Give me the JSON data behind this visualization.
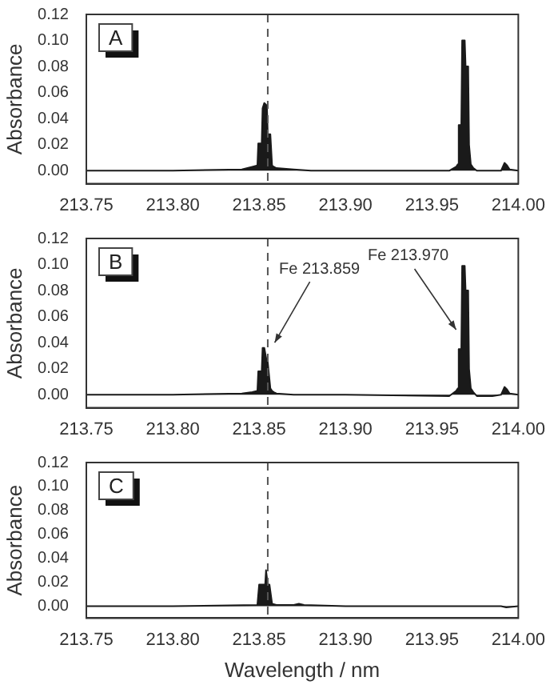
{
  "chart_data": [
    {
      "type": "area",
      "ylabel": "Absorbance",
      "annotations": [
        "A"
      ],
      "x": [
        213.75,
        213.8,
        213.84,
        213.846,
        213.849,
        213.8495,
        213.8515,
        213.852,
        213.853,
        213.8545,
        213.855,
        213.8565,
        213.8575,
        213.8585,
        213.86,
        213.87,
        213.88,
        213.9,
        213.96,
        213.964,
        213.965,
        213.9655,
        213.967,
        213.9675,
        213.969,
        213.9695,
        213.971,
        213.9715,
        213.9725,
        213.974,
        213.976,
        213.985,
        213.99,
        213.992,
        213.9935,
        213.995,
        214.0
      ],
      "values": [
        0,
        0,
        0.001,
        0.003,
        0.004,
        0.021,
        0.021,
        0.048,
        0.052,
        0.05,
        0.028,
        0.028,
        0.004,
        0.003,
        0.002,
        0.001,
        0,
        0,
        0,
        0.003,
        0.005,
        0.035,
        0.035,
        0.1,
        0.1,
        0.08,
        0.08,
        0.02,
        0.005,
        0.002,
        0,
        0,
        0,
        0.006,
        0.004,
        0.001,
        0
      ],
      "color": "#1a1a1a",
      "xlim": [
        213.75,
        214.0
      ],
      "xticks": [
        {
          "value": 213.75,
          "label": "213.75"
        },
        {
          "value": 213.8,
          "label": "213.80"
        },
        {
          "value": 213.85,
          "label": "213.85"
        },
        {
          "value": 213.9,
          "label": "213.90"
        },
        {
          "value": 213.95,
          "label": "213.95"
        },
        {
          "value": 214.0,
          "label": "214.00"
        }
      ],
      "ylim": [
        -0.01,
        0.12
      ],
      "yticks": [
        {
          "value": 0,
          "label": "0.00"
        },
        {
          "value": 0.02,
          "label": "0.02"
        },
        {
          "value": 0.04,
          "label": "0.04"
        },
        {
          "value": 0.06,
          "label": "0.06"
        },
        {
          "value": 0.08,
          "label": "0.08"
        },
        {
          "value": 0.1,
          "label": "0.10"
        },
        {
          "value": 0.12,
          "label": "0.12"
        }
      ],
      "ref_lines": [
        {
          "axis": "x",
          "value": 213.855,
          "line_style": "dashed",
          "color": "#555555"
        }
      ]
    },
    {
      "type": "area",
      "ylabel": "Absorbance",
      "annotations": [
        "B",
        {
          "text": "Fe 213.859",
          "x": 213.859,
          "y": 0.04
        },
        {
          "text": "Fe 213.970",
          "x": 213.964,
          "y": 0.05
        }
      ],
      "x": [
        213.75,
        213.8,
        213.84,
        213.846,
        213.849,
        213.8495,
        213.8515,
        213.852,
        213.853,
        213.8545,
        213.855,
        213.8565,
        213.8575,
        213.8585,
        213.86,
        213.87,
        213.88,
        213.9,
        213.96,
        213.964,
        213.965,
        213.9655,
        213.967,
        213.9675,
        213.969,
        213.9695,
        213.971,
        213.9715,
        213.9725,
        213.974,
        213.976,
        213.985,
        213.99,
        213.992,
        213.9935,
        213.995,
        214.0
      ],
      "values": [
        0,
        0,
        0.001,
        0.002,
        0.003,
        0.018,
        0.018,
        0.036,
        0.036,
        0.025,
        0.025,
        0.005,
        0.003,
        0.002,
        0.001,
        0,
        0,
        0,
        -0.001,
        0.003,
        0.005,
        0.035,
        0.035,
        0.099,
        0.099,
        0.08,
        0.08,
        0.02,
        0.005,
        0.002,
        -0.001,
        -0.001,
        0,
        0.006,
        0.004,
        0.001,
        0
      ],
      "color": "#1a1a1a",
      "xlim": [
        213.75,
        214.0
      ],
      "xticks": [
        {
          "value": 213.75,
          "label": "213.75"
        },
        {
          "value": 213.8,
          "label": "213.80"
        },
        {
          "value": 213.85,
          "label": "213.85"
        },
        {
          "value": 213.9,
          "label": "213.90"
        },
        {
          "value": 213.95,
          "label": "213.95"
        },
        {
          "value": 214.0,
          "label": "214.00"
        }
      ],
      "ylim": [
        -0.01,
        0.12
      ],
      "yticks": [
        {
          "value": 0,
          "label": "0.00"
        },
        {
          "value": 0.02,
          "label": "0.02"
        },
        {
          "value": 0.04,
          "label": "0.04"
        },
        {
          "value": 0.06,
          "label": "0.06"
        },
        {
          "value": 0.08,
          "label": "0.08"
        },
        {
          "value": 0.1,
          "label": "0.10"
        },
        {
          "value": 0.12,
          "label": "0.12"
        }
      ],
      "ref_lines": [
        {
          "axis": "x",
          "value": 213.855,
          "line_style": "dashed",
          "color": "#555555"
        }
      ]
    },
    {
      "type": "area",
      "ylabel": "Absorbance",
      "xlabel": "Wavelength / nm",
      "annotations": [
        "C"
      ],
      "x": [
        213.75,
        213.8,
        213.849,
        213.85,
        213.8535,
        213.854,
        213.855,
        213.856,
        213.8575,
        213.86,
        213.87,
        213.873,
        213.876,
        213.9,
        213.95,
        213.99,
        213.993,
        214.0
      ],
      "values": [
        0,
        0,
        0.001,
        0.018,
        0.018,
        0.03,
        0.018,
        0.018,
        0.002,
        0.001,
        0.001,
        0.002,
        0.001,
        0,
        0,
        0,
        -0.001,
        0
      ],
      "color": "#1a1a1a",
      "xlim": [
        213.75,
        214.0
      ],
      "xticks": [
        {
          "value": 213.75,
          "label": "213.75"
        },
        {
          "value": 213.8,
          "label": "213.80"
        },
        {
          "value": 213.85,
          "label": "213.85"
        },
        {
          "value": 213.9,
          "label": "213.90"
        },
        {
          "value": 213.95,
          "label": "213.95"
        },
        {
          "value": 214.0,
          "label": "214.00"
        }
      ],
      "ylim": [
        -0.01,
        0.12
      ],
      "yticks": [
        {
          "value": 0,
          "label": "0.00"
        },
        {
          "value": 0.02,
          "label": "0.02"
        },
        {
          "value": 0.04,
          "label": "0.04"
        },
        {
          "value": 0.06,
          "label": "0.06"
        },
        {
          "value": 0.08,
          "label": "0.08"
        },
        {
          "value": 0.1,
          "label": "0.10"
        },
        {
          "value": 0.12,
          "label": "0.12"
        }
      ],
      "ref_lines": [
        {
          "axis": "x",
          "value": 213.855,
          "line_style": "dashed",
          "color": "#555555"
        }
      ]
    }
  ]
}
